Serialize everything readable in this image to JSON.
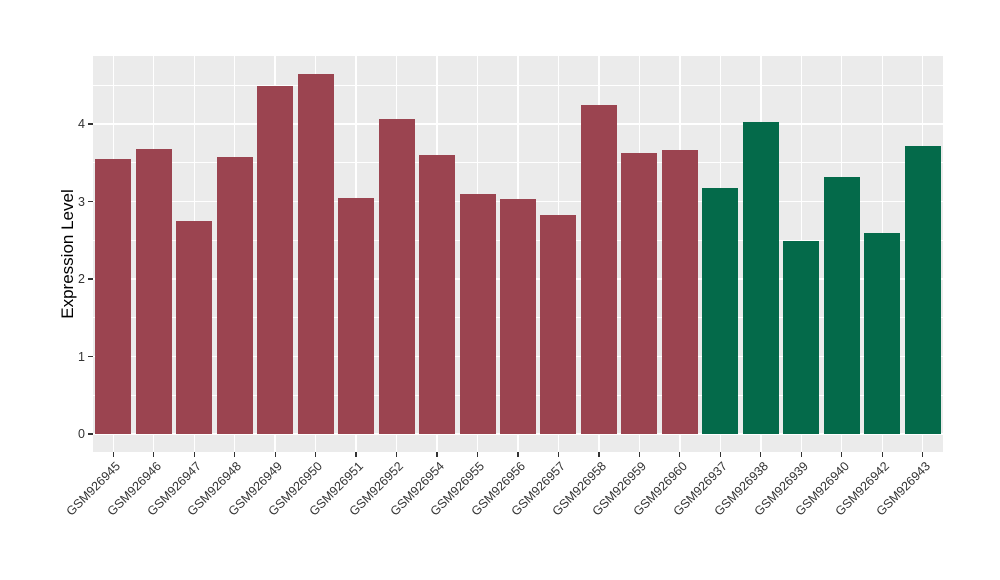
{
  "chart_data": {
    "type": "bar",
    "title": "",
    "xlabel": "",
    "ylabel": "Expression Level",
    "categories": [
      "GSM926945",
      "GSM926946",
      "GSM926947",
      "GSM926948",
      "GSM926949",
      "GSM926950",
      "GSM926951",
      "GSM926952",
      "GSM926954",
      "GSM926955",
      "GSM926956",
      "GSM926957",
      "GSM926958",
      "GSM926959",
      "GSM926960",
      "GSM926937",
      "GSM926938",
      "GSM926939",
      "GSM926940",
      "GSM926942",
      "GSM926943"
    ],
    "values": [
      3.55,
      3.68,
      2.75,
      3.57,
      4.49,
      4.64,
      3.04,
      4.07,
      3.6,
      3.1,
      3.03,
      2.82,
      4.24,
      3.63,
      3.66,
      3.18,
      4.03,
      2.49,
      3.31,
      2.59,
      3.72
    ],
    "bar_colors": [
      "#9B4450",
      "#9B4450",
      "#9B4450",
      "#9B4450",
      "#9B4450",
      "#9B4450",
      "#9B4450",
      "#9B4450",
      "#9B4450",
      "#9B4450",
      "#9B4450",
      "#9B4450",
      "#9B4450",
      "#9B4450",
      "#9B4450",
      "#046A4A",
      "#046A4A",
      "#046A4A",
      "#046A4A",
      "#046A4A",
      "#046A4A"
    ],
    "group_colors": {
      "left_group": "#9B4450",
      "right_group": "#046A4A"
    },
    "yticks": [
      0,
      1,
      2,
      3,
      4
    ],
    "minor_yticks": [
      0.5,
      1.5,
      2.5,
      3.5,
      4.5
    ],
    "ylim": [
      -0.23,
      4.89
    ],
    "grid": "on",
    "legend": "none",
    "panel_bg": "#EBEBEB",
    "grid_color": "#FFFFFF",
    "tick_color": "#333333",
    "axis_text_color": "#333333",
    "axis_title_color": "#000000"
  }
}
